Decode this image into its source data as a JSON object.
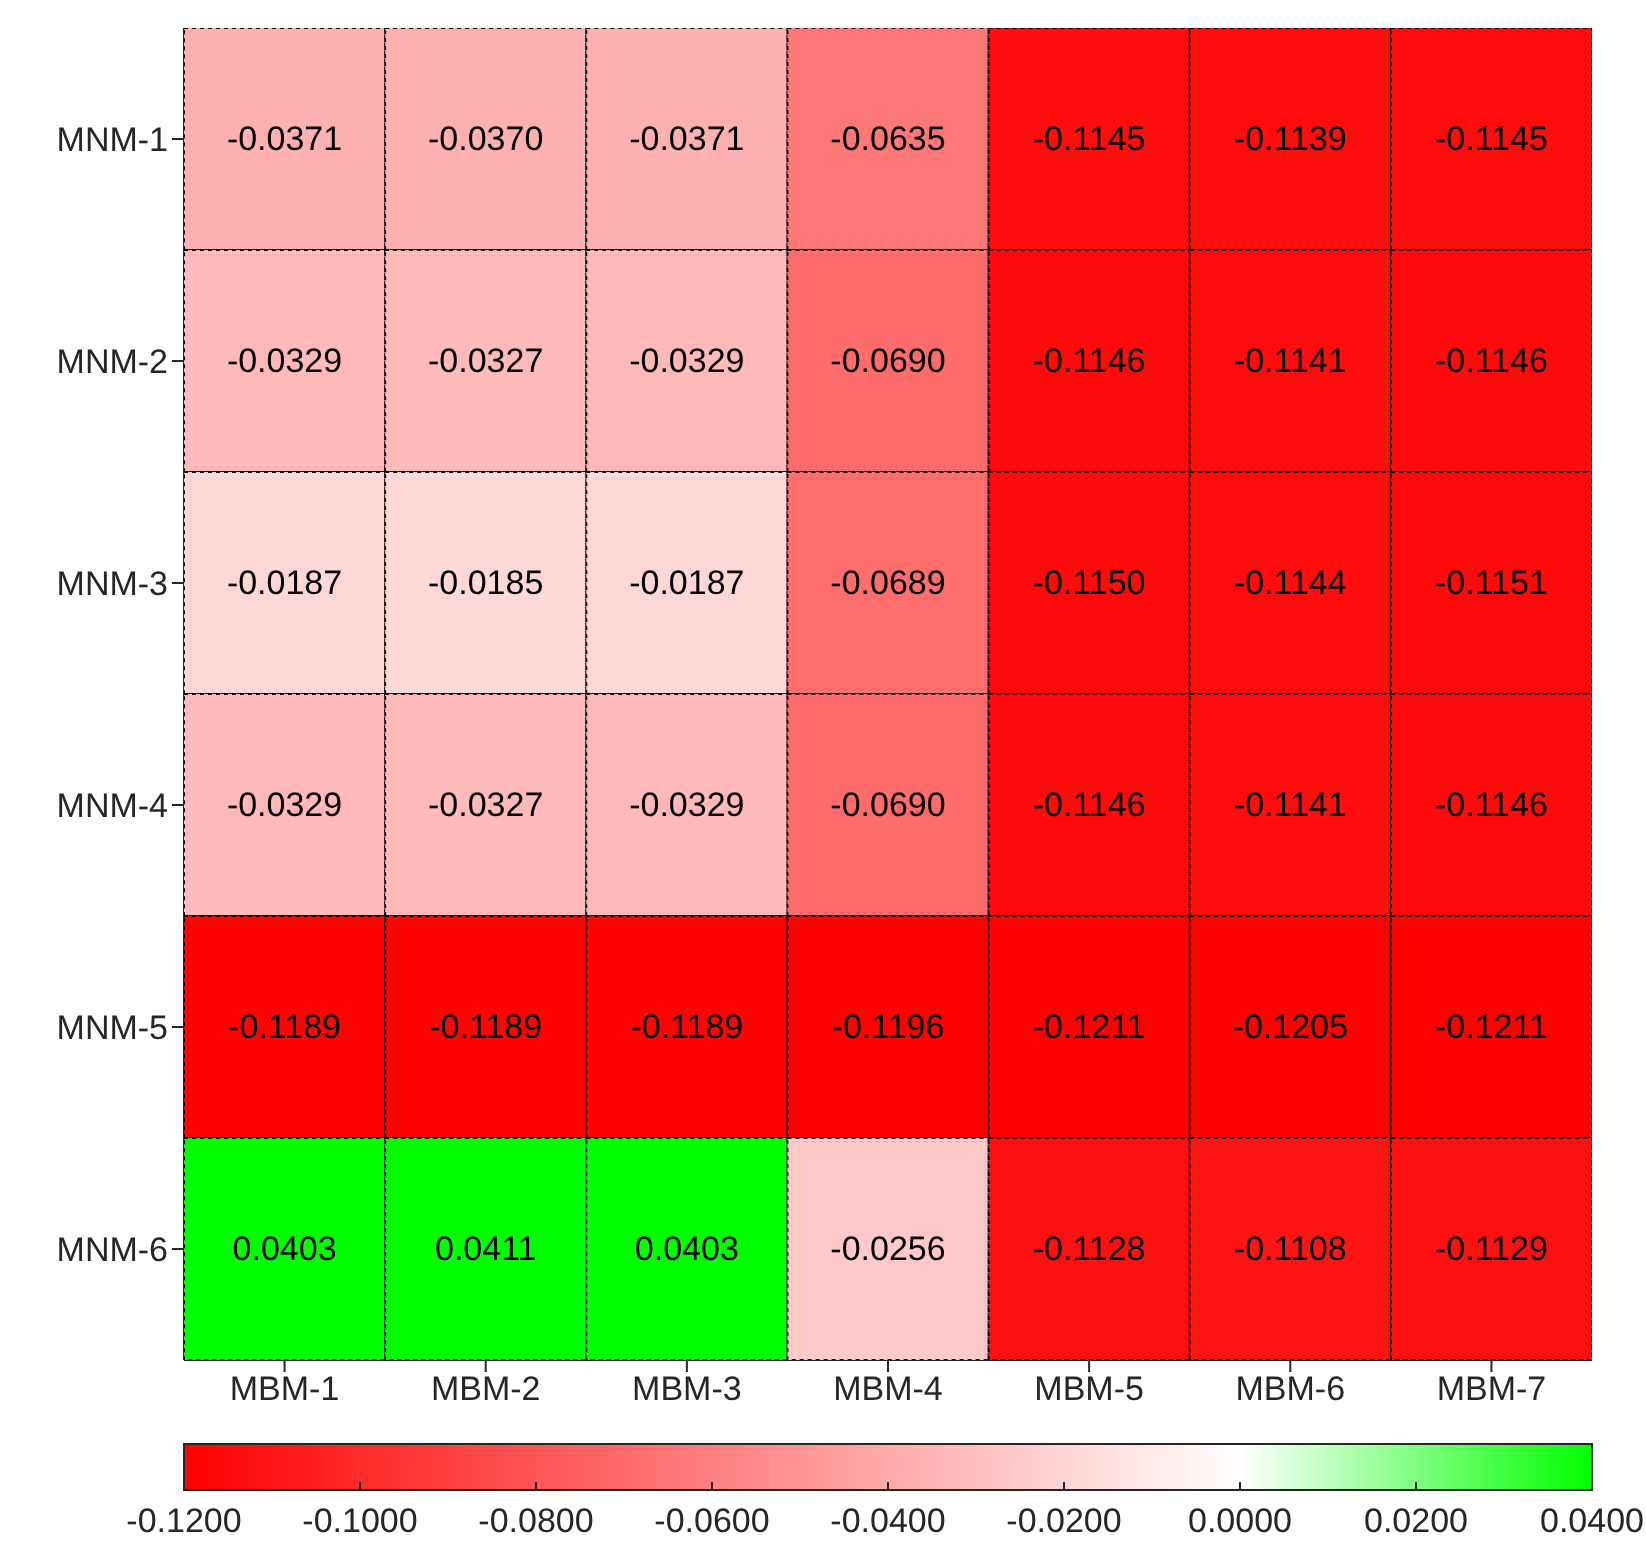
{
  "chart_data": {
    "type": "heatmap",
    "categories": [
      "MBM-1",
      "MBM-2",
      "MBM-3",
      "MBM-4",
      "MBM-5",
      "MBM-6",
      "MBM-7"
    ],
    "y_categories": [
      "MNM-1",
      "MNM-2",
      "MNM-3",
      "MNM-4",
      "MNM-5",
      "MNM-6"
    ],
    "cells": [
      [
        -0.0371,
        -0.037,
        -0.0371,
        -0.0635,
        -0.1145,
        -0.1139,
        -0.1145
      ],
      [
        -0.0329,
        -0.0327,
        -0.0329,
        -0.069,
        -0.1146,
        -0.1141,
        -0.1146
      ],
      [
        -0.0187,
        -0.0185,
        -0.0187,
        -0.0689,
        -0.115,
        -0.1144,
        -0.1151
      ],
      [
        -0.0329,
        -0.0327,
        -0.0329,
        -0.069,
        -0.1146,
        -0.1141,
        -0.1146
      ],
      [
        -0.1189,
        -0.1189,
        -0.1189,
        -0.1196,
        -0.1211,
        -0.1205,
        -0.1211
      ],
      [
        0.0403,
        0.0411,
        0.0403,
        -0.0256,
        -0.1128,
        -0.1108,
        -0.1129
      ]
    ],
    "cell_labels": [
      [
        "-0.0371",
        "-0.0370",
        "-0.0371",
        "-0.0635",
        "-0.1145",
        "-0.1139",
        "-0.1145"
      ],
      [
        "-0.0329",
        "-0.0327",
        "-0.0329",
        "-0.0690",
        "-0.1146",
        "-0.1141",
        "-0.1146"
      ],
      [
        "-0.0187",
        "-0.0185",
        "-0.0187",
        "-0.0689",
        "-0.1150",
        "-0.1144",
        "-0.1151"
      ],
      [
        "-0.0329",
        "-0.0327",
        "-0.0329",
        "-0.0690",
        "-0.1146",
        "-0.1141",
        "-0.1146"
      ],
      [
        "-0.1189",
        "-0.1189",
        "-0.1189",
        "-0.1196",
        "-0.1211",
        "-0.1205",
        "-0.1211"
      ],
      [
        "0.0403",
        "0.0411",
        "0.0403",
        "-0.0256",
        "-0.1128",
        "-0.1108",
        "-0.1129"
      ]
    ],
    "clim": [
      -0.12,
      0.04
    ],
    "cticks": [
      {
        "value": -0.12,
        "label": "-0.1200"
      },
      {
        "value": -0.1,
        "label": "-0.1000"
      },
      {
        "value": -0.08,
        "label": "-0.0800"
      },
      {
        "value": -0.06,
        "label": "-0.0600"
      },
      {
        "value": -0.04,
        "label": "-0.0400"
      },
      {
        "value": -0.02,
        "label": "-0.0200"
      },
      {
        "value": 0,
        "label": "0.0000"
      },
      {
        "value": 0.02,
        "label": "0.0200"
      },
      {
        "value": 0.04,
        "label": "0.0400"
      }
    ]
  }
}
